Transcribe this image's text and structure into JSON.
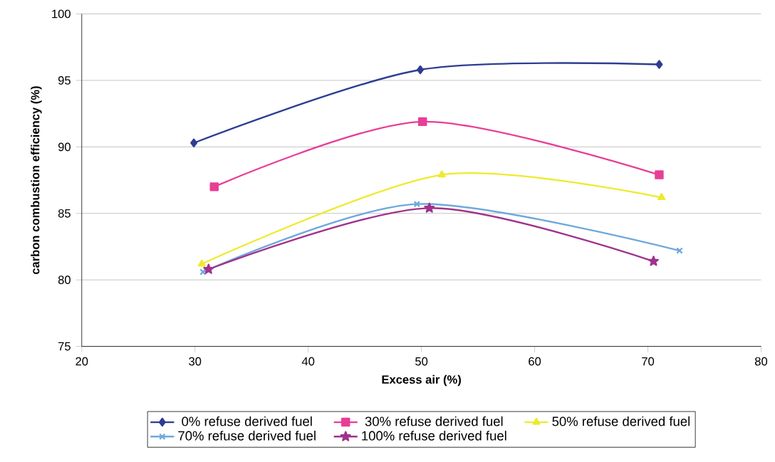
{
  "chart_data": {
    "type": "line",
    "xlabel": "Excess air (%)",
    "ylabel": "carbon combustion efficiency (%)",
    "xlim": [
      20,
      80
    ],
    "xticks": [
      20,
      30,
      40,
      50,
      60,
      70,
      80
    ],
    "ylim": [
      75,
      100
    ],
    "yticks": [
      75,
      80,
      85,
      90,
      95,
      100
    ],
    "grid": "y",
    "legend": "bottom",
    "series": [
      {
        "name": "0% refuse derived fuel",
        "color": "#2e3d92",
        "marker": "diamond",
        "x": [
          29.9,
          49.9,
          71.0
        ],
        "values": [
          90.3,
          95.8,
          96.2
        ]
      },
      {
        "name": "30% refuse derived fuel",
        "color": "#e83e96",
        "marker": "square",
        "x": [
          31.7,
          50.1,
          71.0
        ],
        "values": [
          87.0,
          91.9,
          87.9
        ]
      },
      {
        "name": "50% refuse derived fuel",
        "color": "#eeea2e",
        "marker": "triangle",
        "x": [
          30.6,
          51.8,
          71.2
        ],
        "values": [
          81.2,
          87.9,
          86.2
        ]
      },
      {
        "name": "70% refuse derived fuel",
        "color": "#6fa8dc",
        "marker": "cross",
        "x": [
          30.7,
          49.6,
          72.8
        ],
        "values": [
          80.6,
          85.7,
          82.2
        ]
      },
      {
        "name": "100% refuse derived fuel",
        "color": "#a0328c",
        "marker": "star",
        "x": [
          31.2,
          50.7,
          70.5
        ],
        "values": [
          80.8,
          85.4,
          81.4
        ]
      }
    ]
  }
}
